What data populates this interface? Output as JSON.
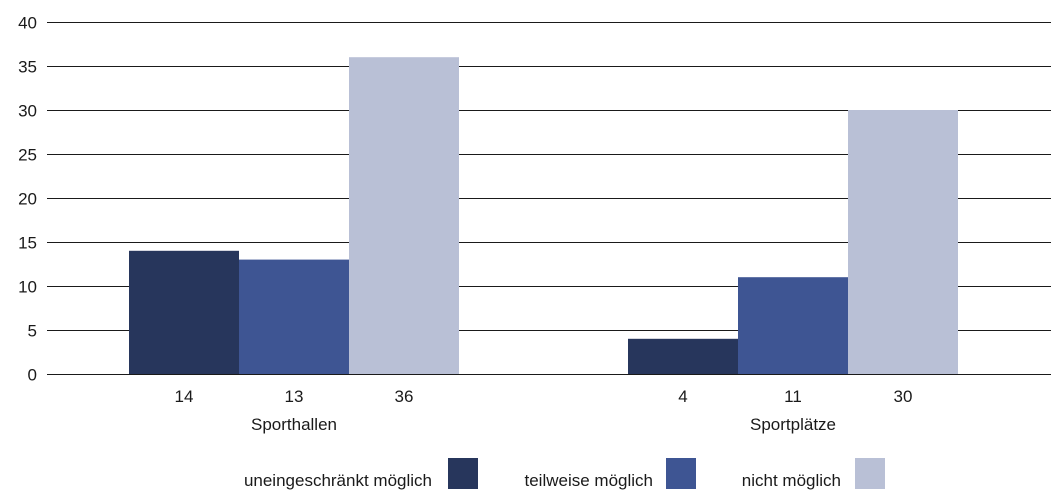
{
  "chart_data": {
    "type": "bar",
    "categories": [
      "Sporthallen",
      "Sportplätze"
    ],
    "series": [
      {
        "name": "uneingeschränkt möglich",
        "values": [
          14,
          4
        ],
        "color": "#27365c"
      },
      {
        "name": "teilweise möglich",
        "values": [
          13,
          11
        ],
        "color": "#3e5593"
      },
      {
        "name": "nicht möglich",
        "values": [
          36,
          30
        ],
        "color": "#b9c0d6"
      }
    ],
    "data_labels": [
      [
        "14",
        "13",
        "36"
      ],
      [
        "4",
        "11",
        "30"
      ]
    ],
    "ylim": [
      0,
      40
    ],
    "yticks": [
      "0",
      "5",
      "10",
      "15",
      "20",
      "25",
      "30",
      "35",
      "40"
    ],
    "title": "",
    "xlabel": "",
    "ylabel": "",
    "grid": true,
    "legend_position": "bottom"
  }
}
